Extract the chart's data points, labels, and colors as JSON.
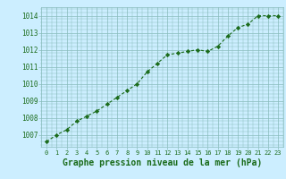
{
  "x": [
    0,
    1,
    2,
    3,
    4,
    5,
    6,
    7,
    8,
    9,
    10,
    11,
    12,
    13,
    14,
    15,
    16,
    17,
    18,
    19,
    20,
    21,
    22,
    23
  ],
  "y": [
    1006.6,
    1007.0,
    1007.3,
    1007.8,
    1008.1,
    1008.4,
    1008.8,
    1009.2,
    1009.6,
    1010.0,
    1010.7,
    1011.2,
    1011.7,
    1011.8,
    1011.9,
    1012.0,
    1011.9,
    1012.2,
    1012.8,
    1013.3,
    1013.5,
    1014.0,
    1014.0,
    1014.0
  ],
  "line_color": "#1a6b1a",
  "marker": "D",
  "marker_size": 2.2,
  "linewidth": 0.8,
  "background_color": "#cceeff",
  "grid_color": "#88bbbb",
  "xlabel": "Graphe pression niveau de la mer (hPa)",
  "xlabel_color": "#1a6b1a",
  "tick_label_color": "#1a6b1a",
  "ylim": [
    1006.3,
    1014.5
  ],
  "xlim": [
    -0.5,
    23.5
  ],
  "yticks": [
    1007,
    1008,
    1009,
    1010,
    1011,
    1012,
    1013,
    1014
  ],
  "xticks": [
    0,
    1,
    2,
    3,
    4,
    5,
    6,
    7,
    8,
    9,
    10,
    11,
    12,
    13,
    14,
    15,
    16,
    17,
    18,
    19,
    20,
    21,
    22,
    23
  ],
  "xtick_fontsize": 5.0,
  "ytick_fontsize": 5.5,
  "xlabel_fontsize": 7.0
}
